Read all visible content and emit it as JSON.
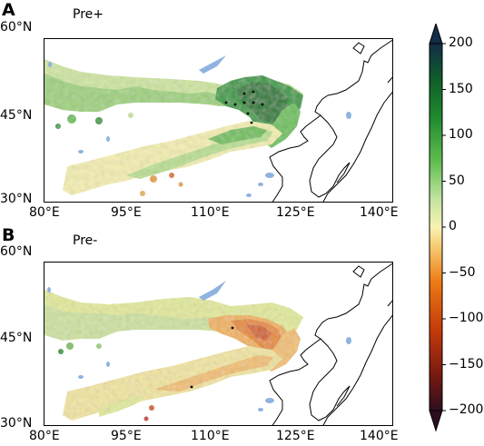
{
  "panels": [
    {
      "letter": "A",
      "title": "Pre+",
      "lat_ticks": [
        "60°N",
        "45°N",
        "30°N"
      ],
      "lon_ticks": [
        "80°E",
        "95°E",
        "110°E",
        "125°E",
        "140°E"
      ]
    },
    {
      "letter": "B",
      "title": "Pre-",
      "lat_ticks": [
        "60°N",
        "45°N",
        "30°N"
      ],
      "lon_ticks": [
        "80°E",
        "95°E",
        "110°E",
        "125°E",
        "140°E"
      ]
    }
  ],
  "colorbar": {
    "ticks": [
      "200",
      "150",
      "100",
      "50",
      "0",
      "−50",
      "−100",
      "−150",
      "−200"
    ],
    "range": [
      -200,
      200
    ],
    "extend": "both",
    "colors": [
      "#2c0f1f",
      "#7a1a10",
      "#c53b0a",
      "#ec7a14",
      "#f6c56a",
      "#f8f3b2",
      "#bfe39d",
      "#5fbd4f",
      "#1f8a2d",
      "#0f5f2a",
      "#132c48"
    ]
  },
  "colors": {
    "lakes": "#8fb3e0",
    "coast": "#000000"
  }
}
